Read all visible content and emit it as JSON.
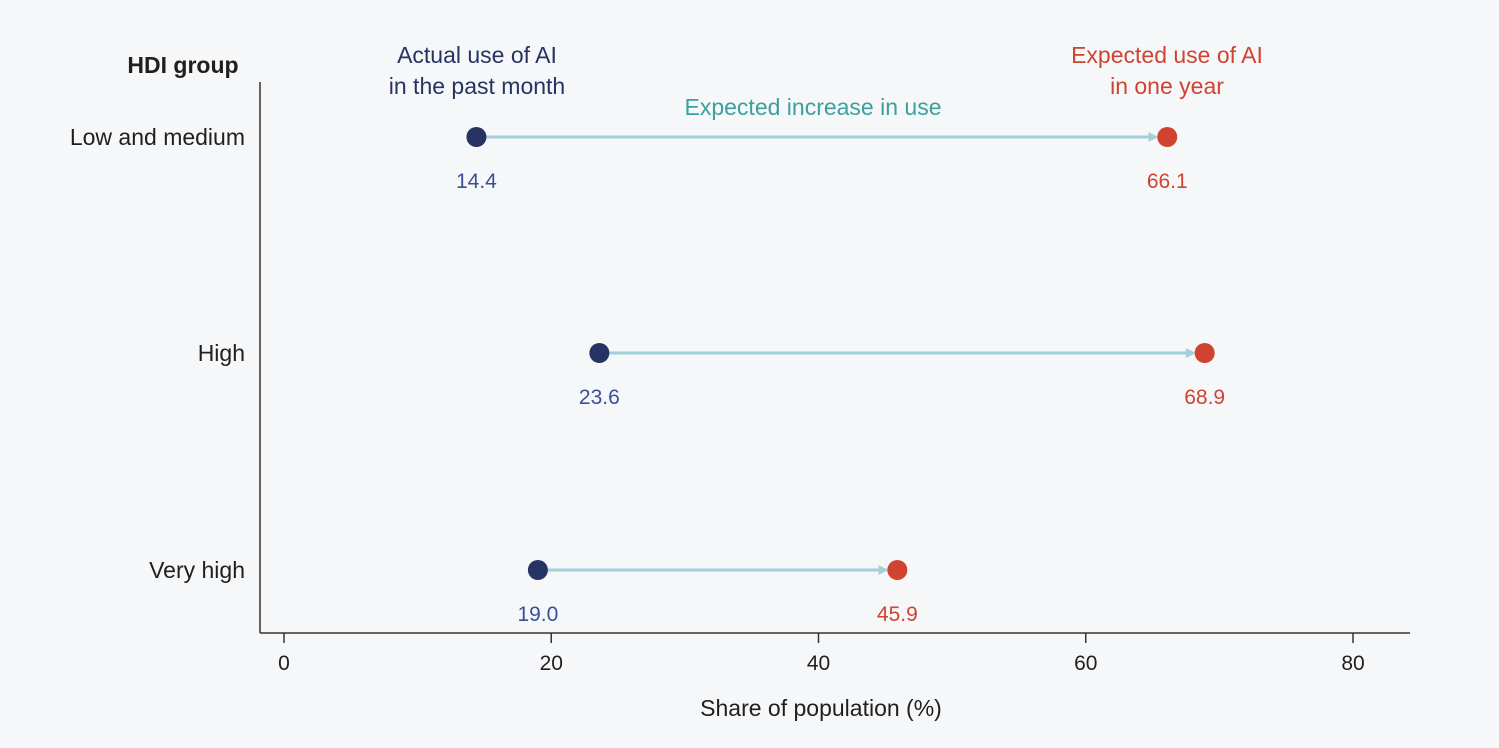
{
  "chart_data": {
    "type": "dumbbell",
    "ylabel": "HDI group",
    "xlabel": "Share of population (%)",
    "xlim": [
      0,
      80
    ],
    "xticks": [
      0,
      20,
      40,
      60,
      80
    ],
    "categories": [
      "Low and medium",
      "High",
      "Very high"
    ],
    "series": [
      {
        "name": "Actual use of AI in the past month",
        "values": [
          14.4,
          23.6,
          19.0
        ],
        "labels": [
          "14.4",
          "23.6",
          "19.0"
        ],
        "color": "#263363",
        "label_color": "#3a4f9a"
      },
      {
        "name": "Expected use of AI in one year",
        "values": [
          66.1,
          68.9,
          45.9
        ],
        "labels": [
          "66.1",
          "68.9",
          "45.9"
        ],
        "color": "#cf4330",
        "label_color": "#cf4330"
      }
    ],
    "annotations": {
      "actual": [
        "Actual use of AI",
        "in the past month"
      ],
      "expected": [
        "Expected use of AI",
        "in one year"
      ],
      "increase": "Expected increase in use"
    },
    "connector_color": "#a3cfd6",
    "increase_color": "#3aa0a0"
  }
}
